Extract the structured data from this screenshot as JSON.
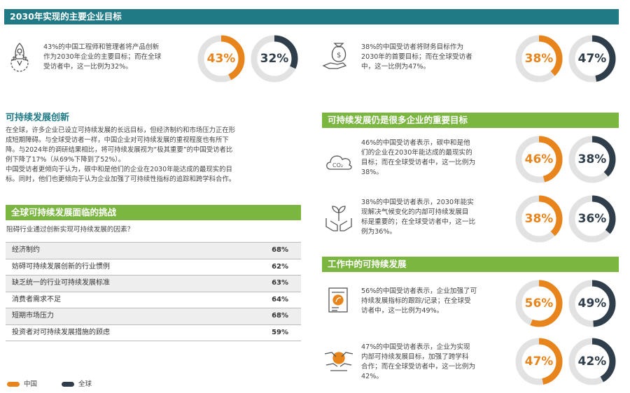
{
  "colors": {
    "china": "#e8841c",
    "global": "#2f3e4a",
    "teal": "#1f7a86",
    "green": "#7ab640",
    "ring_bg": "#e2e2e2"
  },
  "header_top": "2030年实现的主要企业目标",
  "top_left": {
    "icon": "rocket-gear-icon",
    "lines": [
      "43%的中国工程师和管理者将产品创新",
      "作为2030年企业的主要目标；而在全球",
      "受访者中，这一比例为32%。"
    ],
    "china": {
      "label": "43%",
      "value": 43
    },
    "global": {
      "label": "32%",
      "value": 32
    }
  },
  "top_right": {
    "icon": "money-bag-hand-icon",
    "lines": [
      "38%的中国受访者将财务目标作为",
      "2030年的首要目标；而在全球受访者",
      "中，这一比例为47%。"
    ],
    "china": {
      "label": "38%",
      "value": 38
    },
    "global": {
      "label": "47%",
      "value": 47
    }
  },
  "innovation": {
    "title": "可持续发展创新",
    "lines": [
      "在全球，许多企业已设立可持续发展的长远目标，但经济制约和市场压力正在形",
      "成短期障碍。与全球受访者一样，中国企业对可持续发展的重视程度也有所下",
      "降。与2024年的调研结果相比，将可持续发展视为“极其重要”的中国受访者比",
      "例下降了17%（从69%下降到了52%）。",
      "中国受访者更倾向于认为，碳中和是他们的企业在2030年能达成的最现实的目",
      "标。同时，他们也更倾向于认为企业加强了可持续性指标的追踪和跨学科合作。"
    ]
  },
  "challenges": {
    "header": "全球可持续发展面临的挑战",
    "question": "阻碍行业通过创新实现可持续发展的因素？",
    "rows": [
      {
        "label": "经济制约",
        "value": "68%"
      },
      {
        "label": "妨碍可持续发展创新的行业惯例",
        "value": "62%"
      },
      {
        "label": "缺乏统一的行业可持续发展标准",
        "value": "63%"
      },
      {
        "label": "消费者需求不足",
        "value": "64%"
      },
      {
        "label": "短期市场压力",
        "value": "68%"
      },
      {
        "label": "投资者对可持续发展措施的顾虑",
        "value": "59%"
      }
    ]
  },
  "goals": {
    "header": "可持续发展仍是很多企业的重要目标",
    "items": [
      {
        "icon": "co2-cloud-icon",
        "lines": [
          "46%的中国受访者表示，碳中和是他",
          "们的企业在2030年能达成的最现实的",
          "目标；而在全球受访者中，这一比例为",
          "38%。"
        ],
        "china": {
          "label": "46%",
          "value": 46
        },
        "global": {
          "label": "38%",
          "value": 38
        }
      },
      {
        "icon": "plant-hands-icon",
        "lines": [
          "38%的中国受访者表示，2030年能实",
          "现解决气候变化的内部可持续发展目",
          "标是重要的；在全球受访者中，这一比",
          "例为36%。"
        ],
        "china": {
          "label": "38%",
          "value": 38
        },
        "global": {
          "label": "36%",
          "value": 36
        }
      }
    ]
  },
  "work": {
    "header": "工作中的可持续发展",
    "items": [
      {
        "icon": "clipboard-leaf-icon",
        "lines": [
          "56%的中国受访者表示，企业加强了可",
          "持续发展指标的跟踪/记录；在全球受",
          "访者中，这一比例为49%。"
        ],
        "china": {
          "label": "56%",
          "value": 56
        },
        "global": {
          "label": "49%",
          "value": 49
        }
      },
      {
        "icon": "collaboration-hands-icon",
        "lines": [
          "47%的中国受访者表示，企业为实现",
          "内部可持续发展目标，加强了跨学科",
          "合作；而在全球受访者中，这一比例为",
          "42%。"
        ],
        "china": {
          "label": "47%",
          "value": 47
        },
        "global": {
          "label": "42%",
          "value": 42
        }
      }
    ]
  },
  "legend": {
    "china": "中国",
    "global": "全球"
  }
}
